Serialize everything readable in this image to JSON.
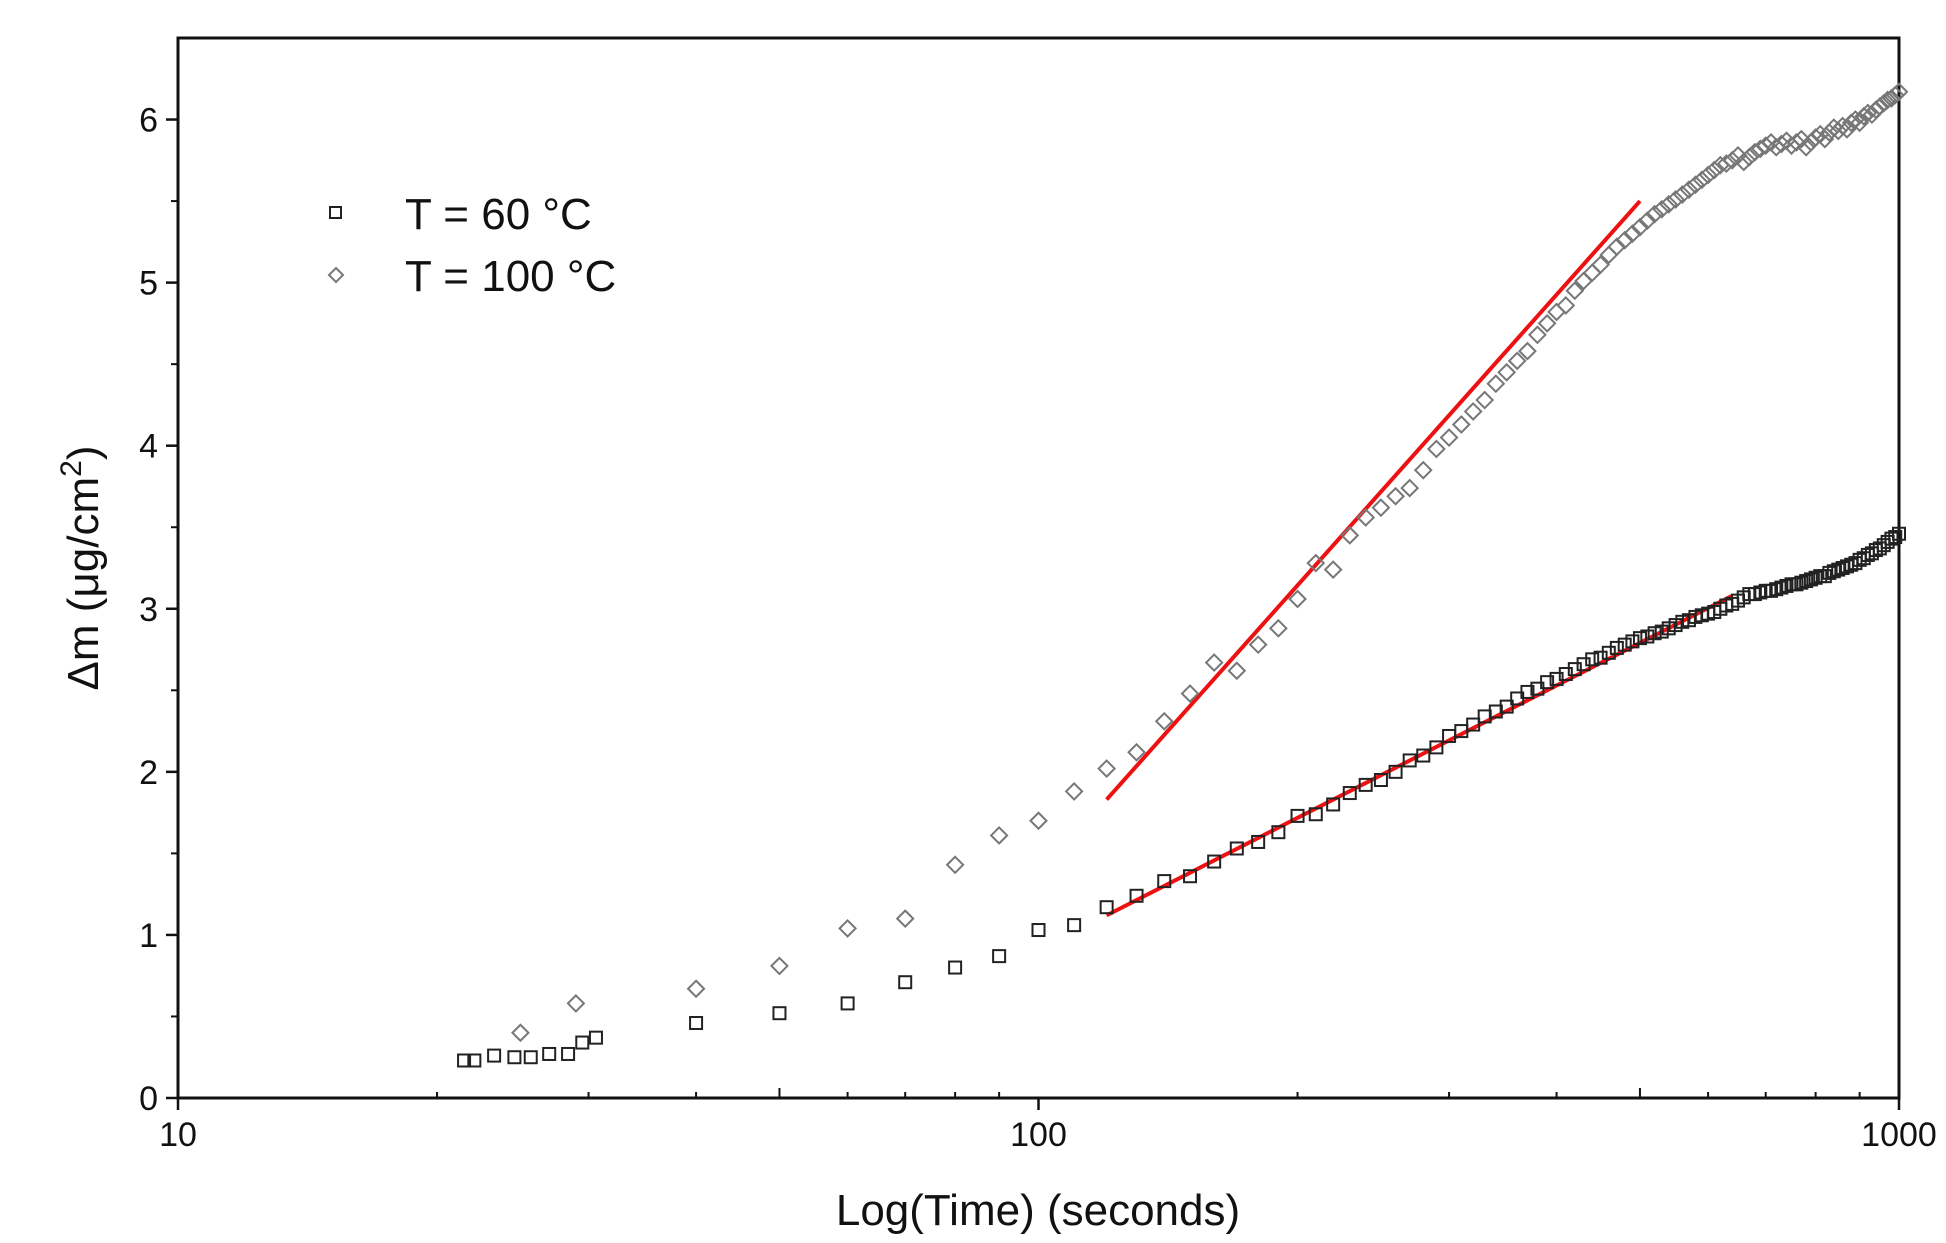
{
  "chart_data": {
    "type": "scatter",
    "xlabel": "Log(Time) (seconds)",
    "ylabel": {
      "prefix": "Δm (μg/cm",
      "superscript": "2",
      "suffix": ")"
    },
    "xscale": "log",
    "xlim": [
      10,
      1000
    ],
    "ylim": [
      0,
      6.5
    ],
    "x_ticks": [
      {
        "value": 10,
        "label": "10"
      },
      {
        "value": 100,
        "label": "100"
      },
      {
        "value": 1000,
        "label": "1000"
      }
    ],
    "y_ticks": [
      {
        "value": 0,
        "label": "0"
      },
      {
        "value": 1,
        "label": "1"
      },
      {
        "value": 2,
        "label": "2"
      },
      {
        "value": 3,
        "label": "3"
      },
      {
        "value": 4,
        "label": "4"
      },
      {
        "value": 5,
        "label": "5"
      },
      {
        "value": 6,
        "label": "6"
      }
    ],
    "grid": false,
    "legend_position": "top-left",
    "series": [
      {
        "name": "T = 60 °C",
        "marker": "square",
        "color": "#222222",
        "points": [
          [
            21.5,
            0.23
          ],
          [
            22.1,
            0.23
          ],
          [
            23.3,
            0.26
          ],
          [
            24.6,
            0.25
          ],
          [
            25.7,
            0.25
          ],
          [
            27.0,
            0.27
          ],
          [
            28.4,
            0.27
          ],
          [
            29.5,
            0.34
          ],
          [
            30.6,
            0.37
          ],
          [
            40,
            0.46
          ],
          [
            50,
            0.52
          ],
          [
            60,
            0.58
          ],
          [
            70,
            0.71
          ],
          [
            80,
            0.8
          ],
          [
            90,
            0.87
          ],
          [
            100,
            1.03
          ],
          [
            110,
            1.06
          ],
          [
            120,
            1.17
          ],
          [
            130,
            1.24
          ],
          [
            140,
            1.33
          ],
          [
            150,
            1.36
          ],
          [
            160,
            1.45
          ],
          [
            170,
            1.53
          ],
          [
            180,
            1.57
          ],
          [
            190,
            1.63
          ],
          [
            200,
            1.73
          ],
          [
            210,
            1.74
          ],
          [
            220,
            1.8
          ],
          [
            230,
            1.87
          ],
          [
            240,
            1.92
          ],
          [
            250,
            1.95
          ],
          [
            260,
            2.0
          ],
          [
            270,
            2.07
          ],
          [
            280,
            2.1
          ],
          [
            290,
            2.15
          ],
          [
            300,
            2.22
          ],
          [
            310,
            2.25
          ],
          [
            320,
            2.29
          ],
          [
            330,
            2.34
          ],
          [
            340,
            2.37
          ],
          [
            350,
            2.4
          ],
          [
            360,
            2.45
          ],
          [
            370,
            2.49
          ],
          [
            380,
            2.51
          ],
          [
            390,
            2.55
          ],
          [
            400,
            2.57
          ],
          [
            410,
            2.6
          ],
          [
            420,
            2.63
          ],
          [
            430,
            2.66
          ],
          [
            440,
            2.69
          ],
          [
            450,
            2.7
          ],
          [
            460,
            2.73
          ],
          [
            470,
            2.76
          ],
          [
            480,
            2.78
          ],
          [
            490,
            2.8
          ],
          [
            500,
            2.82
          ],
          [
            510,
            2.83
          ],
          [
            520,
            2.85
          ],
          [
            530,
            2.86
          ],
          [
            540,
            2.88
          ],
          [
            550,
            2.9
          ],
          [
            560,
            2.92
          ],
          [
            570,
            2.93
          ],
          [
            580,
            2.95
          ],
          [
            590,
            2.96
          ],
          [
            600,
            2.97
          ],
          [
            610,
            2.98
          ],
          [
            620,
            3.0
          ],
          [
            630,
            3.02
          ],
          [
            640,
            3.03
          ],
          [
            650,
            3.05
          ],
          [
            660,
            3.07
          ],
          [
            670,
            3.09
          ],
          [
            680,
            3.09
          ],
          [
            690,
            3.1
          ],
          [
            700,
            3.11
          ],
          [
            710,
            3.11
          ],
          [
            720,
            3.12
          ],
          [
            730,
            3.13
          ],
          [
            740,
            3.14
          ],
          [
            750,
            3.15
          ],
          [
            760,
            3.15
          ],
          [
            770,
            3.16
          ],
          [
            780,
            3.17
          ],
          [
            790,
            3.18
          ],
          [
            800,
            3.19
          ],
          [
            810,
            3.2
          ],
          [
            820,
            3.2
          ],
          [
            830,
            3.22
          ],
          [
            840,
            3.23
          ],
          [
            850,
            3.24
          ],
          [
            860,
            3.25
          ],
          [
            870,
            3.26
          ],
          [
            880,
            3.27
          ],
          [
            890,
            3.28
          ],
          [
            900,
            3.3
          ],
          [
            910,
            3.31
          ],
          [
            920,
            3.33
          ],
          [
            930,
            3.34
          ],
          [
            940,
            3.36
          ],
          [
            950,
            3.37
          ],
          [
            960,
            3.39
          ],
          [
            970,
            3.41
          ],
          [
            980,
            3.43
          ],
          [
            990,
            3.44
          ],
          [
            1000,
            3.46
          ]
        ]
      },
      {
        "name": "T = 100 °C",
        "marker": "diamond",
        "color": "#777777",
        "points": [
          [
            25,
            0.4
          ],
          [
            29,
            0.58
          ],
          [
            40,
            0.67
          ],
          [
            50,
            0.81
          ],
          [
            60,
            1.04
          ],
          [
            70,
            1.1
          ],
          [
            80,
            1.43
          ],
          [
            90,
            1.61
          ],
          [
            100,
            1.7
          ],
          [
            110,
            1.88
          ],
          [
            120,
            2.02
          ],
          [
            130,
            2.12
          ],
          [
            140,
            2.31
          ],
          [
            150,
            2.48
          ],
          [
            160,
            2.67
          ],
          [
            170,
            2.62
          ],
          [
            180,
            2.78
          ],
          [
            190,
            2.88
          ],
          [
            200,
            3.06
          ],
          [
            210,
            3.28
          ],
          [
            220,
            3.24
          ],
          [
            230,
            3.45
          ],
          [
            240,
            3.56
          ],
          [
            250,
            3.62
          ],
          [
            260,
            3.69
          ],
          [
            270,
            3.74
          ],
          [
            280,
            3.85
          ],
          [
            290,
            3.98
          ],
          [
            300,
            4.05
          ],
          [
            310,
            4.13
          ],
          [
            320,
            4.21
          ],
          [
            330,
            4.28
          ],
          [
            340,
            4.38
          ],
          [
            350,
            4.45
          ],
          [
            360,
            4.52
          ],
          [
            370,
            4.58
          ],
          [
            380,
            4.68
          ],
          [
            390,
            4.75
          ],
          [
            400,
            4.82
          ],
          [
            410,
            4.86
          ],
          [
            420,
            4.95
          ],
          [
            430,
            5.01
          ],
          [
            440,
            5.06
          ],
          [
            450,
            5.11
          ],
          [
            460,
            5.17
          ],
          [
            470,
            5.22
          ],
          [
            480,
            5.26
          ],
          [
            490,
            5.3
          ],
          [
            500,
            5.34
          ],
          [
            510,
            5.38
          ],
          [
            520,
            5.42
          ],
          [
            530,
            5.45
          ],
          [
            540,
            5.48
          ],
          [
            550,
            5.51
          ],
          [
            560,
            5.54
          ],
          [
            570,
            5.57
          ],
          [
            580,
            5.6
          ],
          [
            590,
            5.63
          ],
          [
            600,
            5.66
          ],
          [
            610,
            5.69
          ],
          [
            620,
            5.72
          ],
          [
            630,
            5.73
          ],
          [
            640,
            5.75
          ],
          [
            650,
            5.78
          ],
          [
            660,
            5.74
          ],
          [
            670,
            5.77
          ],
          [
            680,
            5.8
          ],
          [
            690,
            5.82
          ],
          [
            700,
            5.84
          ],
          [
            710,
            5.86
          ],
          [
            720,
            5.83
          ],
          [
            730,
            5.85
          ],
          [
            740,
            5.87
          ],
          [
            750,
            5.84
          ],
          [
            760,
            5.86
          ],
          [
            770,
            5.88
          ],
          [
            780,
            5.83
          ],
          [
            790,
            5.86
          ],
          [
            800,
            5.89
          ],
          [
            810,
            5.91
          ],
          [
            820,
            5.88
          ],
          [
            830,
            5.92
          ],
          [
            840,
            5.95
          ],
          [
            850,
            5.93
          ],
          [
            860,
            5.96
          ],
          [
            870,
            5.94
          ],
          [
            880,
            5.98
          ],
          [
            890,
            6.0
          ],
          [
            900,
            5.98
          ],
          [
            910,
            6.02
          ],
          [
            920,
            6.04
          ],
          [
            930,
            6.03
          ],
          [
            940,
            6.06
          ],
          [
            950,
            6.08
          ],
          [
            960,
            6.1
          ],
          [
            970,
            6.12
          ],
          [
            980,
            6.13
          ],
          [
            990,
            6.15
          ],
          [
            1000,
            6.17
          ]
        ]
      }
    ],
    "fit_lines": [
      {
        "series": "T = 60 °C",
        "color": "#ee1111",
        "from": [
          120,
          1.12
        ],
        "to": [
          640,
          3.08
        ]
      },
      {
        "series": "T = 100 °C",
        "color": "#ee1111",
        "from": [
          120,
          1.83
        ],
        "to": [
          500,
          5.5
        ]
      }
    ]
  }
}
